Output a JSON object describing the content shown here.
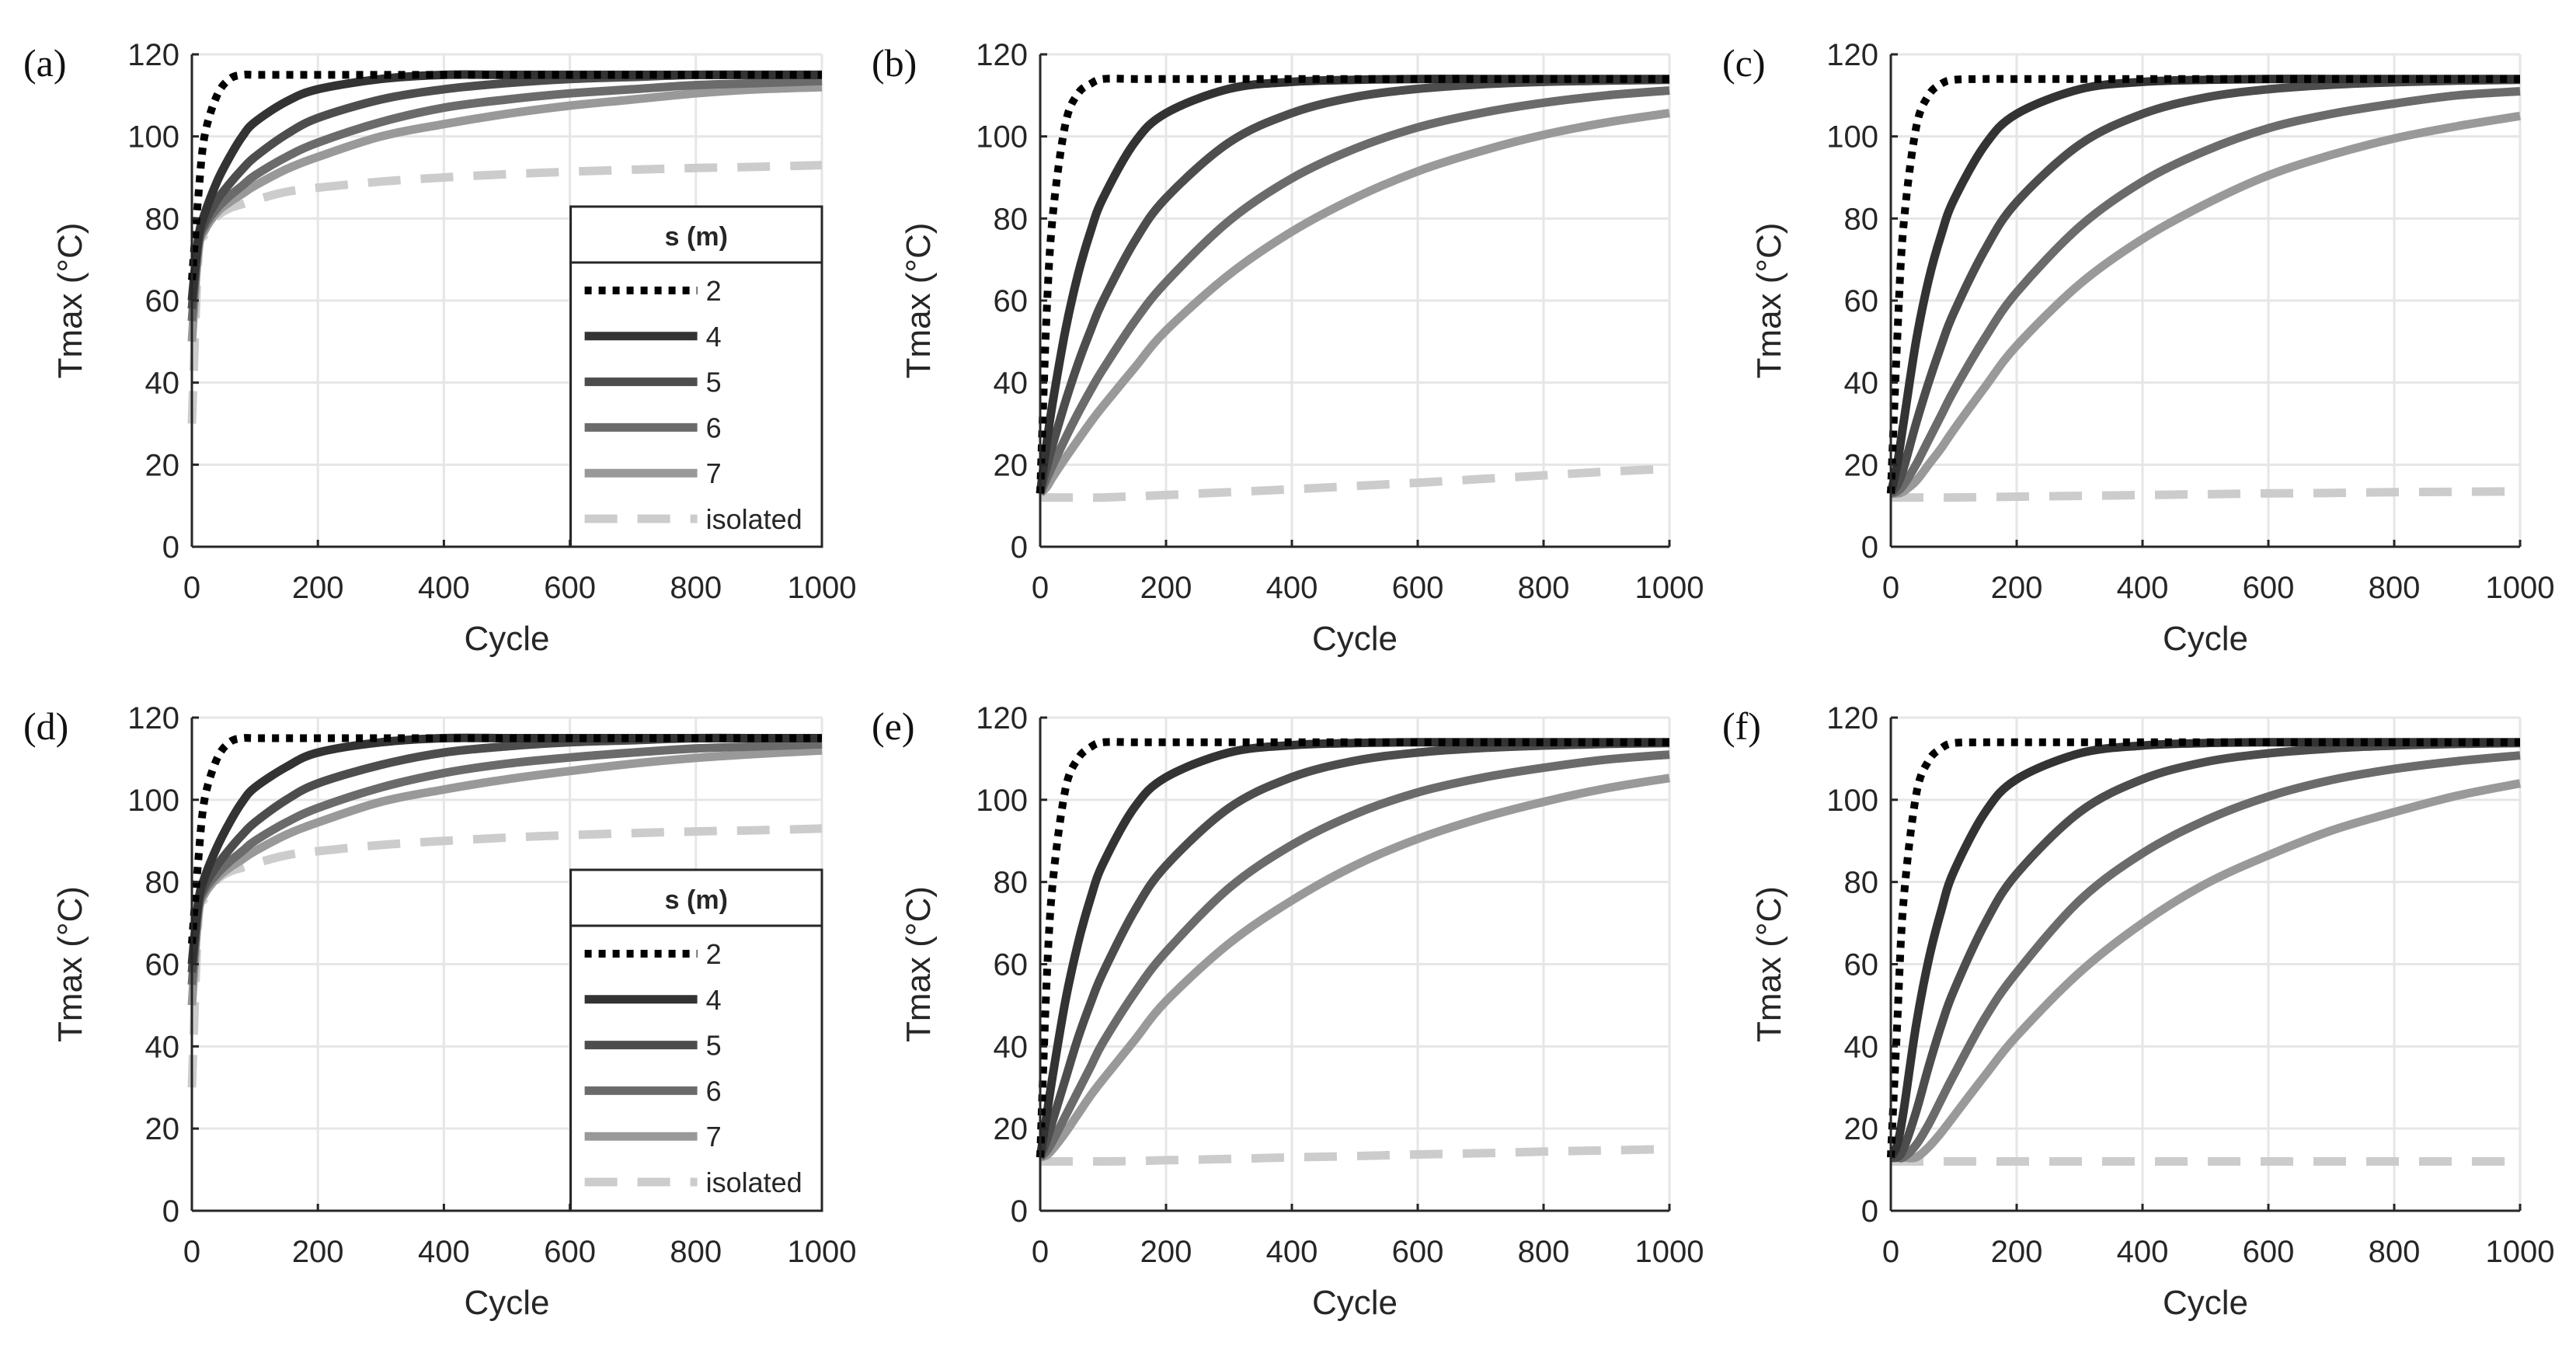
{
  "chart_data": [
    {
      "panel": "(a)",
      "type": "line",
      "xlabel": "Cycle",
      "ylabel": "Tmax (°C)",
      "xlim": [
        0,
        1000
      ],
      "ylim": [
        0,
        120
      ],
      "xticks": [
        0,
        200,
        400,
        600,
        800,
        1000
      ],
      "yticks": [
        0,
        20,
        40,
        60,
        80,
        100,
        120
      ],
      "grid": true,
      "legend": {
        "title": "s (m)",
        "placement": "bottom-right"
      },
      "x": [
        0,
        10,
        20,
        40,
        60,
        80,
        100,
        150,
        200,
        300,
        400,
        500,
        600,
        700,
        800,
        900,
        1000
      ],
      "series": [
        {
          "name": "2",
          "values": [
            65,
            85,
            100,
            110,
            114,
            115,
            115,
            115,
            115,
            115,
            115,
            115,
            115,
            115,
            115,
            115,
            115
          ]
        },
        {
          "name": "4",
          "values": [
            60,
            75,
            81,
            89,
            95,
            100,
            103.5,
            108.5,
            111.5,
            114,
            115,
            115,
            115,
            115,
            115,
            115,
            115
          ]
        },
        {
          "name": "5",
          "values": [
            58,
            74,
            79,
            84.5,
            88.5,
            92,
            95,
            100.5,
            104.5,
            109,
            111.5,
            113,
            114,
            114.5,
            115,
            115,
            115
          ]
        },
        {
          "name": "6",
          "values": [
            55,
            73,
            78,
            82.5,
            85.5,
            88,
            90.5,
            95,
            98.5,
            103.5,
            107,
            109,
            110.5,
            111.5,
            112.5,
            113,
            113.5
          ]
        },
        {
          "name": "7",
          "values": [
            50,
            72,
            77,
            81.5,
            84,
            86,
            88,
            92,
            95,
            100,
            103,
            105.5,
            107.5,
            109,
            110.5,
            111.5,
            112
          ]
        },
        {
          "name": "isolated",
          "values": [
            30,
            70,
            76,
            80.5,
            82.5,
            83.5,
            84.5,
            86.5,
            87.5,
            89,
            90,
            90.8,
            91.4,
            91.9,
            92.3,
            92.6,
            93
          ]
        }
      ]
    },
    {
      "panel": "(b)",
      "type": "line",
      "xlabel": "Cycle",
      "ylabel": "Tmax (°C)",
      "xlim": [
        0,
        1000
      ],
      "ylim": [
        0,
        120
      ],
      "xticks": [
        0,
        200,
        400,
        600,
        800,
        1000
      ],
      "yticks": [
        0,
        20,
        40,
        60,
        80,
        100,
        120
      ],
      "grid": true,
      "x": [
        0,
        10,
        20,
        40,
        60,
        80,
        100,
        150,
        200,
        300,
        400,
        500,
        600,
        700,
        800,
        900,
        1000
      ],
      "series": [
        {
          "name": "2",
          "values": [
            13,
            56,
            80.8,
            103,
            110.4,
            112.8,
            114,
            114,
            114,
            114,
            114,
            114,
            114,
            114,
            114,
            114,
            114
          ]
        },
        {
          "name": "4",
          "values": [
            13,
            24.9,
            35.3,
            52.7,
            66.3,
            76.8,
            85,
            98.5,
            105.7,
            111.6,
            113.3,
            113.8,
            114,
            114,
            114,
            114,
            114
          ]
        },
        {
          "name": "5",
          "values": [
            13,
            19.2,
            24.9,
            35.3,
            44.6,
            52.7,
            60,
            74.4,
            85,
            98.5,
            105.7,
            109.6,
            111.6,
            112.7,
            113.3,
            113.6,
            113.8
          ]
        },
        {
          "name": "6",
          "values": [
            13,
            16.5,
            19.9,
            26.4,
            32.5,
            38.1,
            43.3,
            54.9,
            64.5,
            79.4,
            89.8,
            97,
            102.2,
            105.7,
            108.2,
            110,
            111.2
          ]
        },
        {
          "name": "7",
          "values": [
            13,
            14.5,
            17,
            21.6,
            26,
            30.3,
            34.3,
            43.6,
            52.7,
            66.3,
            76.8,
            85,
            91.5,
            96.4,
            100.4,
            103.4,
            105.7
          ]
        },
        {
          "name": "isolated",
          "values": [
            12,
            12,
            12,
            12,
            12,
            12,
            12,
            12.3,
            12.6,
            13.3,
            14,
            14.8,
            15.6,
            16.5,
            17.4,
            18.3,
            19
          ]
        }
      ]
    },
    {
      "panel": "(c)",
      "type": "line",
      "xlabel": "Cycle",
      "ylabel": "Tmax (°C)",
      "xlim": [
        0,
        1000
      ],
      "ylim": [
        0,
        120
      ],
      "xticks": [
        0,
        200,
        400,
        600,
        800,
        1000
      ],
      "yticks": [
        0,
        20,
        40,
        60,
        80,
        100,
        120
      ],
      "grid": true,
      "x": [
        0,
        10,
        20,
        40,
        60,
        80,
        100,
        150,
        200,
        300,
        400,
        500,
        600,
        700,
        800,
        900,
        1000
      ],
      "series": [
        {
          "name": "2",
          "values": [
            13,
            50,
            78,
            102,
            110,
            112.8,
            113.8,
            114,
            114,
            114,
            114,
            114,
            114,
            114,
            114,
            114,
            114
          ]
        },
        {
          "name": "4",
          "values": [
            13,
            20,
            30,
            50,
            65,
            76,
            84.5,
            98,
            105.5,
            111.5,
            113.3,
            113.8,
            114,
            114,
            114,
            114,
            114
          ]
        },
        {
          "name": "5",
          "values": [
            13,
            15,
            19,
            30,
            40,
            49,
            57,
            72.5,
            84,
            98,
            105.5,
            109.5,
            111.5,
            112.6,
            113.2,
            113.6,
            113.8
          ]
        },
        {
          "name": "6",
          "values": [
            13,
            13.5,
            15,
            20,
            26,
            32,
            38,
            51,
            62,
            78,
            89,
            96.5,
            102,
            105.5,
            108,
            110,
            111
          ]
        },
        {
          "name": "7",
          "values": [
            13,
            13,
            13.5,
            16,
            20,
            24,
            28.5,
            39,
            49,
            64,
            75,
            83.5,
            90.5,
            95.5,
            99.5,
            102.5,
            105
          ]
        },
        {
          "name": "isolated",
          "values": [
            12,
            12,
            12,
            12,
            12,
            12,
            12,
            12.1,
            12.2,
            12.4,
            12.6,
            12.8,
            13,
            13.1,
            13.3,
            13.4,
            13.5
          ]
        }
      ]
    },
    {
      "panel": "(d)",
      "type": "line",
      "xlabel": "Cycle",
      "ylabel": "Tmax (°C)",
      "xlim": [
        0,
        1000
      ],
      "ylim": [
        0,
        120
      ],
      "xticks": [
        0,
        200,
        400,
        600,
        800,
        1000
      ],
      "yticks": [
        0,
        20,
        40,
        60,
        80,
        100,
        120
      ],
      "grid": true,
      "legend": {
        "title": "s (m)",
        "placement": "bottom-right"
      },
      "x": [
        0,
        10,
        20,
        40,
        60,
        80,
        100,
        150,
        200,
        300,
        400,
        500,
        600,
        700,
        800,
        900,
        1000
      ],
      "series": [
        {
          "name": "2",
          "values": [
            65,
            85,
            100,
            110,
            114,
            115,
            115,
            115,
            115,
            115,
            115,
            115,
            115,
            115,
            115,
            115,
            115
          ]
        },
        {
          "name": "4",
          "values": [
            60,
            75,
            81,
            88.5,
            94.5,
            99.5,
            103,
            108,
            111.5,
            114,
            115,
            115,
            115,
            115,
            115,
            115,
            115
          ]
        },
        {
          "name": "5",
          "values": [
            58,
            74,
            79,
            84,
            88,
            91.5,
            94.5,
            100,
            104,
            108.5,
            111.5,
            113,
            114,
            114.5,
            115,
            115,
            115
          ]
        },
        {
          "name": "6",
          "values": [
            55,
            73,
            78,
            82,
            85,
            87.5,
            90,
            94.5,
            98,
            103,
            106.5,
            108.8,
            110.3,
            111.5,
            112.5,
            113,
            113.5
          ]
        },
        {
          "name": "7",
          "values": [
            50,
            72,
            77,
            81,
            83.5,
            85.5,
            87.5,
            91.5,
            94.5,
            99.5,
            102.5,
            105,
            107,
            108.8,
            110.2,
            111.2,
            112
          ]
        },
        {
          "name": "isolated",
          "values": [
            30,
            70,
            76,
            80.5,
            82.5,
            83.5,
            84.5,
            86.5,
            87.5,
            89,
            90,
            90.8,
            91.4,
            91.9,
            92.3,
            92.6,
            93
          ]
        }
      ]
    },
    {
      "panel": "(e)",
      "type": "line",
      "xlabel": "Cycle",
      "ylabel": "Tmax (°C)",
      "xlim": [
        0,
        1000
      ],
      "ylim": [
        0,
        120
      ],
      "xticks": [
        0,
        200,
        400,
        600,
        800,
        1000
      ],
      "yticks": [
        0,
        20,
        40,
        60,
        80,
        100,
        120
      ],
      "grid": true,
      "x": [
        0,
        10,
        20,
        40,
        60,
        80,
        100,
        150,
        200,
        300,
        400,
        500,
        600,
        700,
        800,
        900,
        1000
      ],
      "series": [
        {
          "name": "2",
          "values": [
            13,
            55,
            80,
            102.5,
            110,
            112.8,
            114,
            114,
            114,
            114,
            114,
            114,
            114,
            114,
            114,
            114,
            114
          ]
        },
        {
          "name": "4",
          "values": [
            13,
            23,
            33,
            51,
            65,
            76,
            84.5,
            98.2,
            105.5,
            111.5,
            113.3,
            113.8,
            114,
            114,
            114,
            114,
            114
          ]
        },
        {
          "name": "5",
          "values": [
            13,
            17,
            22,
            32,
            42,
            50.5,
            58,
            73,
            84,
            98,
            105.5,
            109.5,
            111.5,
            112.6,
            113.2,
            113.6,
            113.8
          ]
        },
        {
          "name": "6",
          "values": [
            13,
            14.5,
            17,
            23,
            29,
            35,
            41,
            53,
            63,
            78.5,
            89,
            96.5,
            101.8,
            105.3,
            107.8,
            109.8,
            111
          ]
        },
        {
          "name": "7",
          "values": [
            13,
            13.5,
            15,
            19,
            23.5,
            28,
            32,
            41.5,
            51,
            65,
            75.5,
            84,
            90.5,
            95.5,
            99.5,
            102.8,
            105.3
          ]
        },
        {
          "name": "isolated",
          "values": [
            12,
            12,
            12,
            12,
            12,
            12,
            12,
            12.1,
            12.3,
            12.6,
            13,
            13.3,
            13.7,
            14,
            14.4,
            14.7,
            15
          ]
        }
      ]
    },
    {
      "panel": "(f)",
      "type": "line",
      "xlabel": "Cycle",
      "ylabel": "Tmax (°C)",
      "xlim": [
        0,
        1000
      ],
      "ylim": [
        0,
        120
      ],
      "xticks": [
        0,
        200,
        400,
        600,
        800,
        1000
      ],
      "yticks": [
        0,
        20,
        40,
        60,
        80,
        100,
        120
      ],
      "grid": true,
      "x": [
        0,
        10,
        20,
        40,
        60,
        80,
        100,
        150,
        200,
        300,
        400,
        500,
        600,
        700,
        800,
        900,
        1000
      ],
      "series": [
        {
          "name": "2",
          "values": [
            13,
            45,
            75,
            101,
            109.5,
            112.5,
            113.8,
            114,
            114,
            114,
            114,
            114,
            114,
            114,
            114,
            114,
            114
          ]
        },
        {
          "name": "4",
          "values": [
            13,
            16,
            24,
            45,
            61,
            73,
            82.5,
            97,
            105,
            111.3,
            113.2,
            113.8,
            114,
            114,
            114,
            114,
            114
          ]
        },
        {
          "name": "5",
          "values": [
            13,
            13,
            15,
            24,
            35,
            45,
            53.5,
            70,
            82,
            97,
            105,
            109.2,
            111.3,
            112.5,
            113.2,
            113.6,
            113.8
          ]
        },
        {
          "name": "6",
          "values": [
            13,
            13,
            13,
            16,
            21,
            27,
            33,
            47,
            58,
            75.5,
            87,
            95,
            100.8,
            104.8,
            107.5,
            109.4,
            110.8
          ]
        },
        {
          "name": "7",
          "values": [
            13,
            13,
            13,
            13,
            15.5,
            19,
            23,
            33,
            42.5,
            58,
            70,
            79.5,
            86.5,
            92.5,
            97,
            101,
            104
          ]
        },
        {
          "name": "isolated",
          "values": [
            12,
            12,
            12,
            12,
            12,
            12,
            12,
            12,
            12,
            12,
            12,
            12,
            12,
            12,
            12,
            12,
            12
          ]
        }
      ]
    }
  ],
  "colors": {
    "2": "#000000",
    "4": "#333333",
    "5": "#4d4d4d",
    "6": "#6b6b6b",
    "7": "#999999",
    "isolated": "#cccccc",
    "grid": "#e6e6e6",
    "axis": "#262626"
  }
}
